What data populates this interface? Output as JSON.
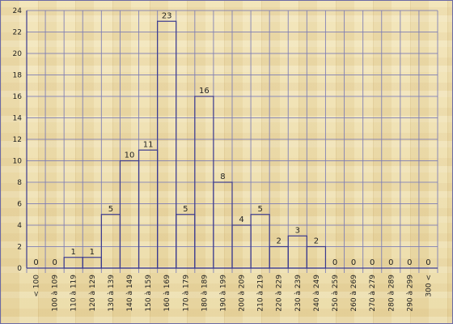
{
  "chart_data": {
    "type": "bar",
    "categories": [
      "< 100",
      "100 à 109",
      "110 à 119",
      "120 à 129",
      "130 à 139",
      "140 à 149",
      "150 à 159",
      "160 à 169",
      "170 à 179",
      "180 à 189",
      "190 à 199",
      "200 à 209",
      "210 à 219",
      "220 à 229",
      "230 à 239",
      "240 à 249",
      "250 à 259",
      "260 à 269",
      "270 à 279",
      "280 à 289",
      "290 à 299",
      "300 <"
    ],
    "values": [
      0,
      0,
      1,
      1,
      5,
      10,
      11,
      23,
      5,
      16,
      8,
      4,
      5,
      2,
      3,
      2,
      0,
      0,
      0,
      0,
      0,
      0
    ],
    "title": "",
    "xlabel": "",
    "ylabel": "",
    "ylim": [
      0,
      24
    ],
    "yticks": [
      "0",
      "2",
      "4",
      "6",
      "8",
      "10",
      "12",
      "14",
      "16",
      "18",
      "20",
      "22",
      "24"
    ],
    "grid": true,
    "colors": {
      "bar_stroke": "#3b3a8f",
      "grid": "#7b7bb5"
    }
  }
}
